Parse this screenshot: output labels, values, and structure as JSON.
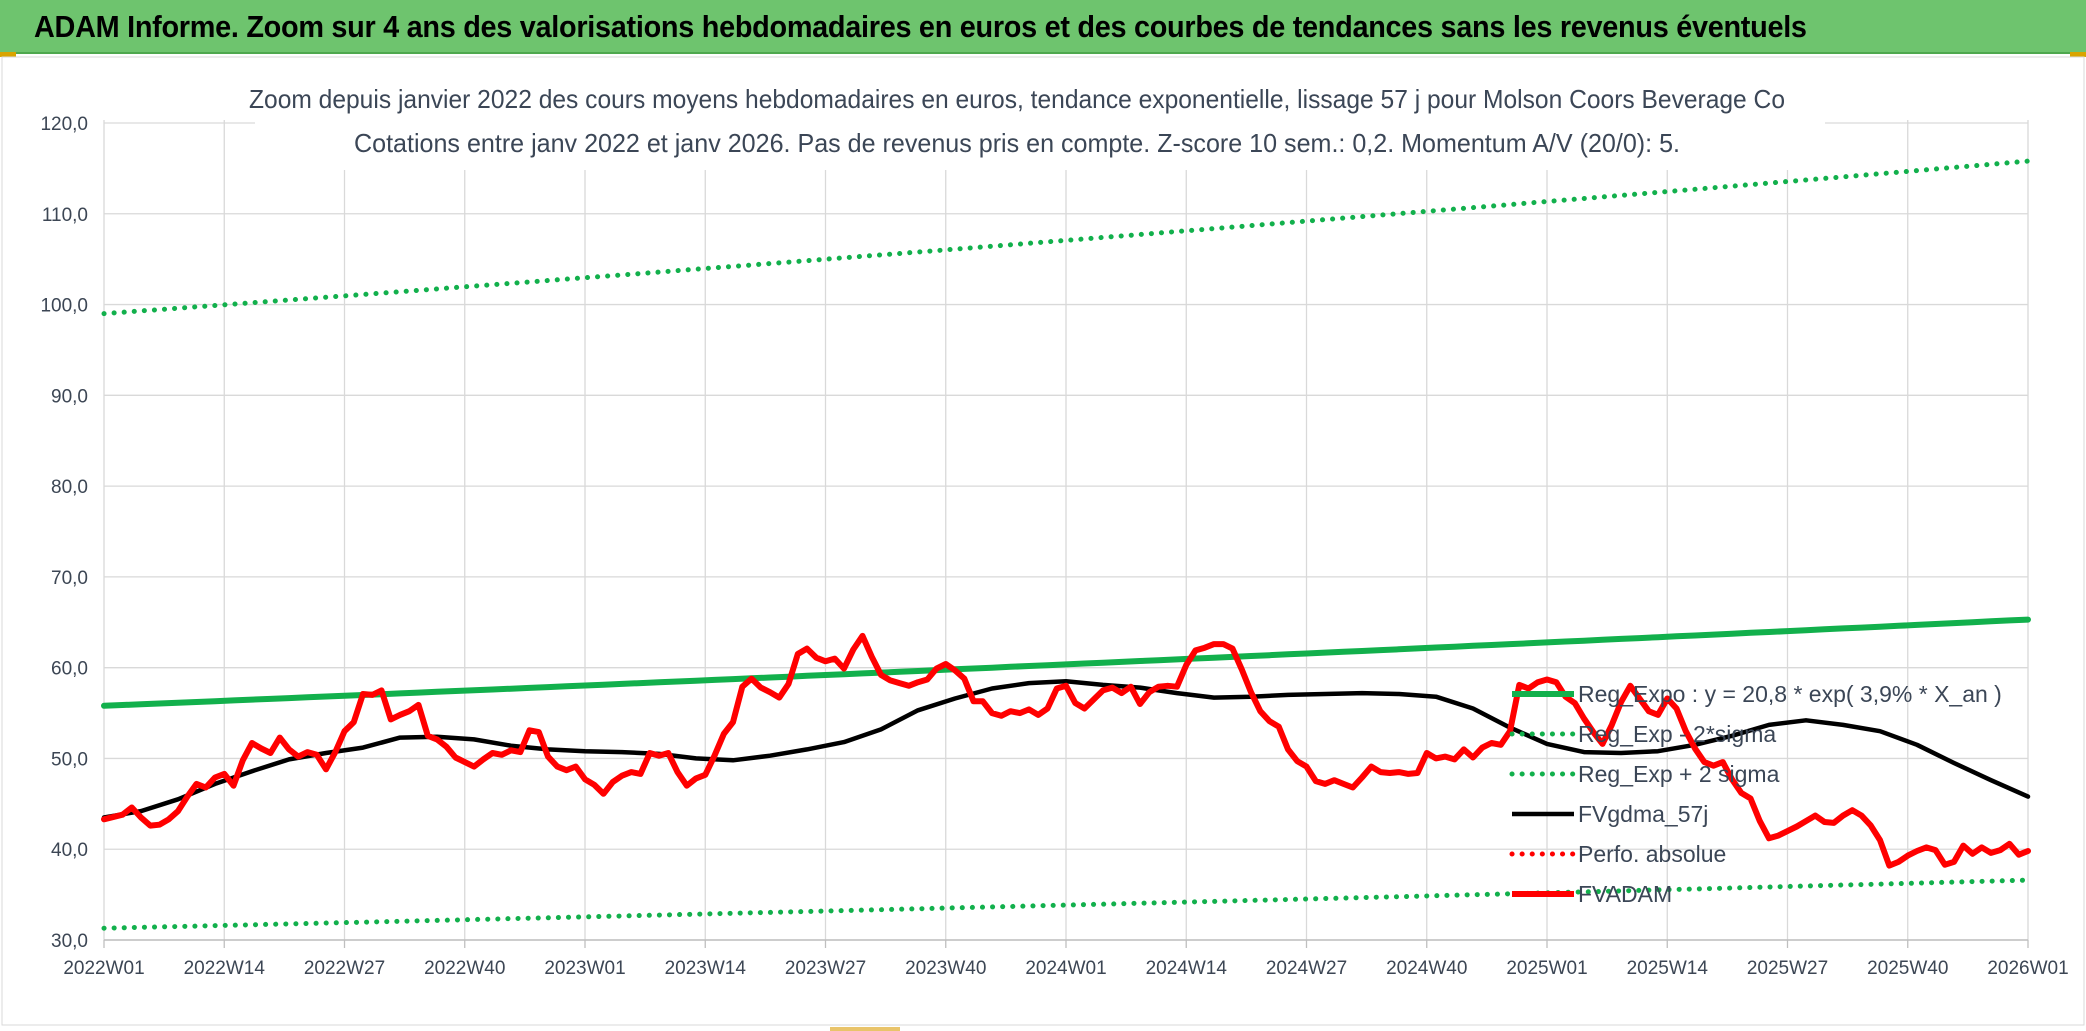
{
  "header": {
    "title": "ADAM Informe. Zoom sur 4 ans des valorisations hebdomadaires en euros et des courbes de tendances sans les revenus éventuels"
  },
  "chart_data": {
    "type": "line",
    "title": "Zoom depuis janvier 2022 des cours moyens hebdomadaires en euros, tendance exponentielle, lissage 57 j pour Molson Coors Beverage Co",
    "subtitle": "Cotations entre janv 2022 et janv 2026. Pas de revenus pris en compte. Z-score 10 sem.: 0,2. Momentum A/V (20/0): 5.",
    "xlabel": "",
    "ylabel": "",
    "ylim": [
      30,
      120
    ],
    "yticks": [
      "30,0",
      "40,0",
      "50,0",
      "60,0",
      "70,0",
      "80,0",
      "90,0",
      "100,0",
      "110,0",
      "120,0"
    ],
    "xticks": [
      "2022W01",
      "2022W14",
      "2022W27",
      "2022W40",
      "2023W01",
      "2023W14",
      "2023W27",
      "2023W40",
      "2024W01",
      "2024W14",
      "2024W27",
      "2024W40",
      "2025W01",
      "2025W14",
      "2025W27",
      "2025W40",
      "2026W01"
    ],
    "grid": true,
    "legend_position": "right",
    "week_range": [
      0,
      208
    ],
    "series": [
      {
        "name": "Reg_Expo : y = 20,8 * exp( 3,9% *  X_an )",
        "color": "#12b04c",
        "style": "solid-thick",
        "start": 55.8,
        "end": 65.3
      },
      {
        "name": "Reg_Exp - 2*sigma",
        "color": "#12b04c",
        "style": "dotted",
        "start": 31.3,
        "end": 36.6
      },
      {
        "name": "Reg_Exp + 2 sigma",
        "color": "#12b04c",
        "style": "dotted",
        "start": 99.0,
        "end": 115.8
      },
      {
        "name": "FVgdma_57j",
        "color": "#000000",
        "style": "solid",
        "points": [
          [
            0,
            43.5
          ],
          [
            4,
            44.2
          ],
          [
            8,
            45.5
          ],
          [
            12,
            47.2
          ],
          [
            16,
            48.6
          ],
          [
            20,
            49.9
          ],
          [
            24,
            50.6
          ],
          [
            28,
            51.2
          ],
          [
            32,
            52.3
          ],
          [
            36,
            52.4
          ],
          [
            40,
            52.1
          ],
          [
            44,
            51.4
          ],
          [
            48,
            51.0
          ],
          [
            52,
            50.8
          ],
          [
            56,
            50.7
          ],
          [
            60,
            50.5
          ],
          [
            64,
            50.0
          ],
          [
            68,
            49.8
          ],
          [
            72,
            50.3
          ],
          [
            76,
            51.0
          ],
          [
            80,
            51.8
          ],
          [
            84,
            53.2
          ],
          [
            88,
            55.3
          ],
          [
            92,
            56.6
          ],
          [
            96,
            57.7
          ],
          [
            100,
            58.3
          ],
          [
            104,
            58.5
          ],
          [
            108,
            58.1
          ],
          [
            112,
            57.8
          ],
          [
            116,
            57.2
          ],
          [
            120,
            56.7
          ],
          [
            124,
            56.8
          ],
          [
            128,
            57.0
          ],
          [
            132,
            57.1
          ],
          [
            136,
            57.2
          ],
          [
            140,
            57.1
          ],
          [
            144,
            56.8
          ],
          [
            148,
            55.5
          ],
          [
            152,
            53.4
          ],
          [
            156,
            51.6
          ],
          [
            160,
            50.7
          ],
          [
            164,
            50.6
          ],
          [
            168,
            50.8
          ],
          [
            172,
            51.5
          ],
          [
            176,
            52.5
          ],
          [
            180,
            53.7
          ],
          [
            184,
            54.2
          ],
          [
            188,
            53.7
          ],
          [
            192,
            53.0
          ],
          [
            196,
            51.5
          ],
          [
            200,
            49.5
          ],
          [
            204,
            47.6
          ],
          [
            208,
            45.8
          ]
        ]
      },
      {
        "name": "Perfo. absolue",
        "color": "#ff0000",
        "style": "dotted"
      },
      {
        "name": "FVADAM",
        "color": "#ff0000",
        "style": "solid-thick",
        "points": [
          [
            0,
            43.3
          ],
          [
            2,
            43.8
          ],
          [
            3,
            44.6
          ],
          [
            4,
            43.5
          ],
          [
            5,
            42.6
          ],
          [
            6,
            42.7
          ],
          [
            7,
            43.3
          ],
          [
            8,
            44.2
          ],
          [
            9,
            45.8
          ],
          [
            10,
            47.2
          ],
          [
            11,
            46.8
          ],
          [
            12,
            47.9
          ],
          [
            13,
            48.3
          ],
          [
            14,
            47.0
          ],
          [
            15,
            49.8
          ],
          [
            16,
            51.7
          ],
          [
            17,
            51.1
          ],
          [
            18,
            50.6
          ],
          [
            19,
            52.3
          ],
          [
            20,
            51.0
          ],
          [
            21,
            50.2
          ],
          [
            22,
            50.7
          ],
          [
            23,
            50.4
          ],
          [
            24,
            48.8
          ],
          [
            25,
            50.7
          ],
          [
            26,
            53.0
          ],
          [
            27,
            54.0
          ],
          [
            28,
            57.1
          ],
          [
            29,
            57.0
          ],
          [
            30,
            57.5
          ],
          [
            31,
            54.3
          ],
          [
            32,
            54.8
          ],
          [
            33,
            55.2
          ],
          [
            34,
            55.9
          ],
          [
            35,
            52.5
          ],
          [
            36,
            52.1
          ],
          [
            37,
            51.3
          ],
          [
            38,
            50.1
          ],
          [
            39,
            49.6
          ],
          [
            40,
            49.1
          ],
          [
            41,
            49.9
          ],
          [
            42,
            50.6
          ],
          [
            43,
            50.4
          ],
          [
            44,
            50.9
          ],
          [
            45,
            50.7
          ],
          [
            46,
            53.1
          ],
          [
            47,
            52.9
          ],
          [
            48,
            50.2
          ],
          [
            49,
            49.1
          ],
          [
            50,
            48.7
          ],
          [
            51,
            49.1
          ],
          [
            52,
            47.7
          ],
          [
            53,
            47.1
          ],
          [
            54,
            46.1
          ],
          [
            55,
            47.4
          ],
          [
            56,
            48.1
          ],
          [
            57,
            48.5
          ],
          [
            58,
            48.3
          ],
          [
            59,
            50.6
          ],
          [
            60,
            50.3
          ],
          [
            61,
            50.6
          ],
          [
            62,
            48.5
          ],
          [
            63,
            47.0
          ],
          [
            64,
            47.8
          ],
          [
            65,
            48.2
          ],
          [
            66,
            50.3
          ],
          [
            67,
            52.7
          ],
          [
            68,
            54.0
          ],
          [
            69,
            57.9
          ],
          [
            70,
            58.8
          ],
          [
            71,
            57.8
          ],
          [
            72,
            57.3
          ],
          [
            73,
            56.7
          ],
          [
            74,
            58.2
          ],
          [
            75,
            61.5
          ],
          [
            76,
            62.1
          ],
          [
            77,
            61.1
          ],
          [
            78,
            60.7
          ],
          [
            79,
            61.0
          ],
          [
            80,
            59.9
          ],
          [
            81,
            62.0
          ],
          [
            82,
            63.5
          ],
          [
            83,
            61.2
          ],
          [
            84,
            59.2
          ],
          [
            85,
            58.6
          ],
          [
            86,
            58.3
          ],
          [
            87,
            58.0
          ],
          [
            88,
            58.4
          ],
          [
            89,
            58.7
          ],
          [
            90,
            59.9
          ],
          [
            91,
            60.4
          ],
          [
            92,
            59.7
          ],
          [
            93,
            58.8
          ],
          [
            94,
            56.3
          ],
          [
            95,
            56.3
          ],
          [
            96,
            55.0
          ],
          [
            97,
            54.7
          ],
          [
            98,
            55.2
          ],
          [
            99,
            55.0
          ],
          [
            100,
            55.4
          ],
          [
            101,
            54.8
          ],
          [
            102,
            55.5
          ],
          [
            103,
            57.7
          ],
          [
            104,
            58.0
          ],
          [
            105,
            56.1
          ],
          [
            106,
            55.5
          ],
          [
            107,
            56.5
          ],
          [
            108,
            57.5
          ],
          [
            109,
            57.8
          ],
          [
            110,
            57.2
          ],
          [
            111,
            57.9
          ],
          [
            112,
            56.0
          ],
          [
            113,
            57.3
          ],
          [
            114,
            57.9
          ],
          [
            115,
            58.0
          ],
          [
            116,
            57.9
          ],
          [
            117,
            60.3
          ],
          [
            118,
            61.9
          ],
          [
            119,
            62.2
          ],
          [
            120,
            62.6
          ],
          [
            121,
            62.6
          ],
          [
            122,
            62.1
          ],
          [
            123,
            59.8
          ],
          [
            124,
            57.3
          ],
          [
            125,
            55.2
          ],
          [
            126,
            54.1
          ],
          [
            127,
            53.5
          ],
          [
            128,
            51.0
          ],
          [
            129,
            49.7
          ],
          [
            130,
            49.1
          ],
          [
            131,
            47.5
          ],
          [
            132,
            47.2
          ],
          [
            133,
            47.6
          ],
          [
            134,
            47.2
          ],
          [
            135,
            46.8
          ],
          [
            136,
            47.9
          ],
          [
            137,
            49.1
          ],
          [
            138,
            48.5
          ],
          [
            139,
            48.4
          ],
          [
            140,
            48.5
          ],
          [
            141,
            48.3
          ],
          [
            142,
            48.4
          ],
          [
            143,
            50.6
          ],
          [
            144,
            50.0
          ],
          [
            145,
            50.2
          ],
          [
            146,
            49.9
          ],
          [
            147,
            51.0
          ],
          [
            148,
            50.1
          ],
          [
            149,
            51.2
          ],
          [
            150,
            51.7
          ],
          [
            151,
            51.5
          ],
          [
            152,
            53.0
          ],
          [
            153,
            58.1
          ],
          [
            154,
            57.7
          ],
          [
            155,
            58.4
          ],
          [
            156,
            58.7
          ],
          [
            157,
            58.4
          ],
          [
            158,
            56.8
          ],
          [
            159,
            56.1
          ],
          [
            160,
            54.4
          ],
          [
            161,
            52.9
          ],
          [
            162,
            51.6
          ],
          [
            163,
            53.7
          ],
          [
            164,
            56.2
          ],
          [
            165,
            58.0
          ],
          [
            166,
            56.6
          ],
          [
            167,
            55.2
          ],
          [
            168,
            54.8
          ],
          [
            169,
            56.6
          ],
          [
            170,
            55.5
          ],
          [
            171,
            53.0
          ],
          [
            172,
            51.1
          ],
          [
            173,
            49.6
          ],
          [
            174,
            49.2
          ],
          [
            175,
            49.6
          ],
          [
            176,
            47.7
          ],
          [
            177,
            46.2
          ],
          [
            178,
            45.6
          ],
          [
            179,
            43.1
          ],
          [
            180,
            41.2
          ],
          [
            181,
            41.5
          ],
          [
            182,
            42.0
          ],
          [
            183,
            42.5
          ],
          [
            184,
            43.1
          ],
          [
            185,
            43.7
          ],
          [
            186,
            43.0
          ],
          [
            187,
            42.9
          ],
          [
            188,
            43.7
          ],
          [
            189,
            44.3
          ],
          [
            190,
            43.7
          ],
          [
            191,
            42.6
          ],
          [
            192,
            41.0
          ],
          [
            193,
            38.2
          ],
          [
            194,
            38.6
          ],
          [
            195,
            39.3
          ],
          [
            196,
            39.8
          ],
          [
            197,
            40.2
          ],
          [
            198,
            39.9
          ],
          [
            199,
            38.3
          ],
          [
            200,
            38.6
          ],
          [
            201,
            40.4
          ],
          [
            202,
            39.5
          ],
          [
            203,
            40.2
          ],
          [
            204,
            39.6
          ],
          [
            205,
            39.9
          ],
          [
            206,
            40.6
          ],
          [
            207,
            39.4
          ],
          [
            208,
            39.8
          ]
        ]
      }
    ]
  }
}
